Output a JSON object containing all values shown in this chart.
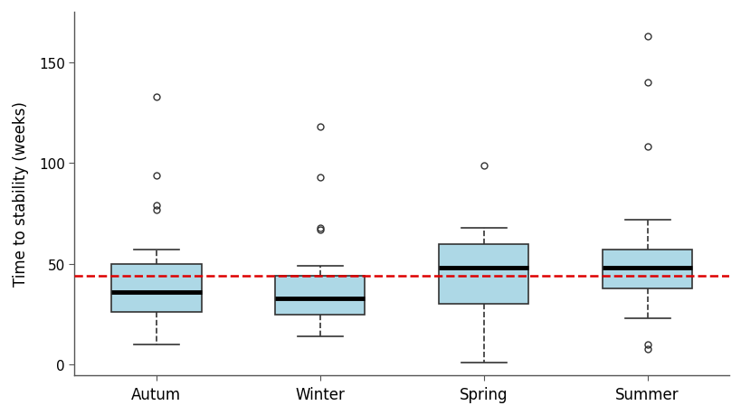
{
  "categories": [
    "Autum",
    "Winter",
    "Spring",
    "Summer"
  ],
  "box_data": [
    {
      "label": "Autum",
      "med": 36,
      "q1": 26,
      "q3": 50,
      "whislo": 10,
      "whishi": 57,
      "fliers": [
        77,
        79,
        94,
        133
      ]
    },
    {
      "label": "Winter",
      "med": 33,
      "q1": 25,
      "q3": 44,
      "whislo": 14,
      "whishi": 49,
      "fliers": [
        67,
        68,
        93,
        118
      ]
    },
    {
      "label": "Spring",
      "med": 48,
      "q1": 30,
      "q3": 60,
      "whislo": 1,
      "whishi": 68,
      "fliers": [
        99
      ]
    },
    {
      "label": "Summer",
      "med": 48,
      "q1": 38,
      "q3": 57,
      "whislo": 23,
      "whishi": 72,
      "fliers": [
        8,
        10,
        108,
        140,
        163
      ]
    }
  ],
  "mean_line": 43.9,
  "ylabel": "Time to stability (weeks)",
  "ylim": [
    -5,
    175
  ],
  "yticks": [
    0,
    50,
    100,
    150
  ],
  "box_color": "#add8e6",
  "box_edge_color": "#333333",
  "median_color": "#000000",
  "whisker_color": "#333333",
  "cap_color": "#333333",
  "outlier_facecolor": "none",
  "outlier_edgecolor": "#333333",
  "mean_line_color": "#dd0000",
  "background_color": "#ffffff"
}
